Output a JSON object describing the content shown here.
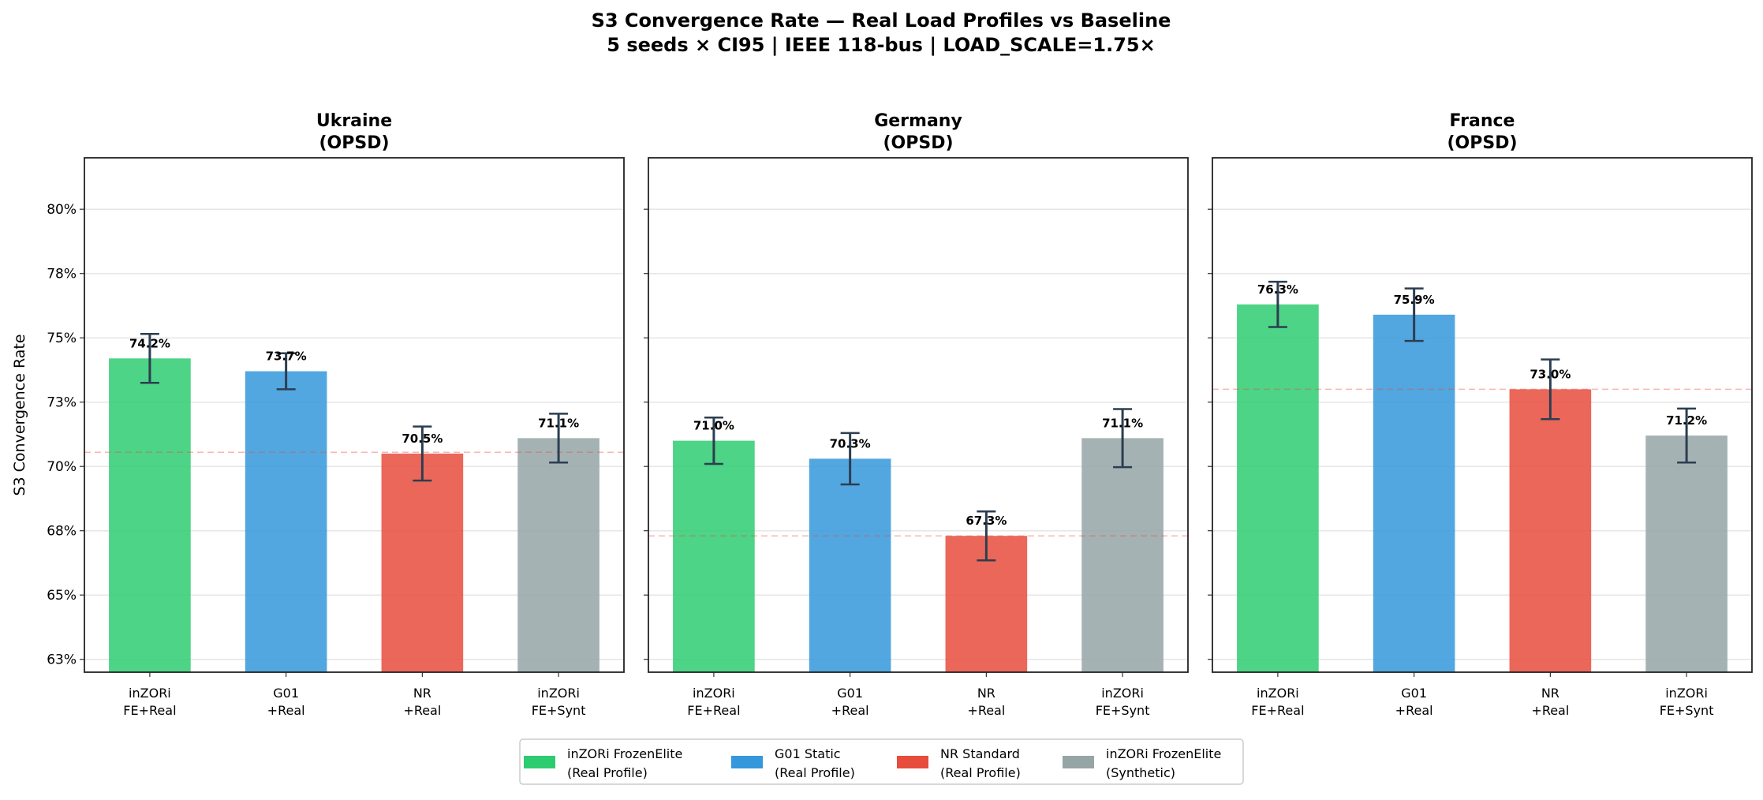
{
  "chart_data": {
    "type": "bar",
    "title": "S3 Convergence Rate — Real Load Profiles vs Baseline",
    "subtitle": "5 seeds × CI95 | IEEE 118-bus | LOAD_SCALE=1.75×",
    "ylabel": "S3 Convergence Rate",
    "ylim": [
      62,
      82
    ],
    "yticks": [
      62.5,
      65,
      67.5,
      70,
      72.5,
      75,
      77.5,
      80
    ],
    "ytick_labels": [
      "63%",
      "65%",
      "68%",
      "70%",
      "73%",
      "75%",
      "78%",
      "80%"
    ],
    "grid": "y",
    "categories": [
      [
        "inZORi",
        "FE+Real"
      ],
      [
        "G01",
        "+Real"
      ],
      [
        "NR",
        "+Real"
      ],
      [
        "inZORi",
        "FE+Synt"
      ]
    ],
    "colors": [
      "#2ecc71",
      "#3498db",
      "#e74c3c",
      "#95a5a6"
    ],
    "baseline_color": "#e74c3c",
    "errorbar_color": "#2c3e50",
    "panels": [
      {
        "title": "Ukraine",
        "subtitle": "(OPSD)",
        "values": [
          74.2,
          73.7,
          70.5,
          71.1
        ],
        "labels": [
          "74.2%",
          "73.7%",
          "70.5%",
          "71.1%"
        ],
        "ci": [
          0.95,
          0.7,
          1.05,
          0.95
        ],
        "baseline": 70.55
      },
      {
        "title": "Germany",
        "subtitle": "(OPSD)",
        "values": [
          71.0,
          70.3,
          67.3,
          71.1
        ],
        "labels": [
          "71.0%",
          "70.3%",
          "67.3%",
          "71.1%"
        ],
        "ci": [
          0.9,
          1.0,
          0.95,
          1.13
        ],
        "baseline": 67.3
      },
      {
        "title": "France",
        "subtitle": "(OPSD)",
        "values": [
          76.3,
          75.9,
          73.0,
          71.2
        ],
        "labels": [
          "76.3%",
          "75.9%",
          "73.0%",
          "71.2%"
        ],
        "ci": [
          0.88,
          1.02,
          1.16,
          1.05
        ],
        "baseline": 73.0
      }
    ],
    "legend": {
      "placement": "bottom-center",
      "entries": [
        [
          "inZORi FrozenElite",
          "(Real Profile)"
        ],
        [
          "G01 Static",
          "(Real Profile)"
        ],
        [
          "NR Standard",
          "(Real Profile)"
        ],
        [
          "inZORi FrozenElite",
          "(Synthetic)"
        ]
      ]
    }
  }
}
